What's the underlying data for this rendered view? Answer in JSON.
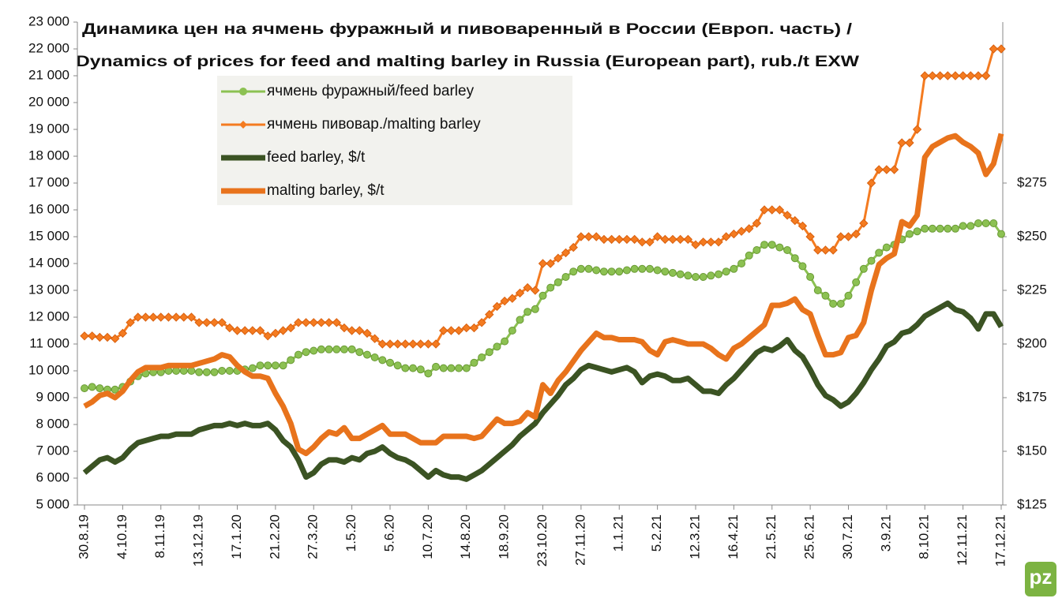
{
  "chart_data": {
    "type": "line",
    "title": "Динамика цен на ячмень фуражный и пивоваренный в России (Европ. часть) /",
    "subtitle": "Dynamics of prices for feed and malting barley in Russia (European part), rub./t EXW",
    "categories": [
      "30.8.19",
      null,
      null,
      null,
      null,
      "4.10.19",
      null,
      null,
      null,
      null,
      "8.11.19",
      null,
      null,
      null,
      null,
      "13.12.19",
      null,
      null,
      null,
      null,
      "17.1.20",
      null,
      null,
      null,
      null,
      "21.2.20",
      null,
      null,
      null,
      null,
      "27.3.20",
      null,
      null,
      null,
      null,
      "1.5.20",
      null,
      null,
      null,
      null,
      "5.6.20",
      null,
      null,
      null,
      null,
      "10.7.20",
      null,
      null,
      null,
      null,
      "14.8.20",
      null,
      null,
      null,
      null,
      "18.9.20",
      null,
      null,
      null,
      null,
      "23.10.20",
      null,
      null,
      null,
      null,
      "27.11.20",
      null,
      null,
      null,
      null,
      "1.1.21",
      null,
      null,
      null,
      null,
      "5.2.21",
      null,
      null,
      null,
      null,
      "12.3.21",
      null,
      null,
      null,
      null,
      "16.4.21",
      null,
      null,
      null,
      null,
      "21.5.21",
      null,
      null,
      null,
      null,
      "25.6.21",
      null,
      null,
      null,
      null,
      "30.7.21",
      null,
      null,
      null,
      null,
      "3.9.21",
      null,
      null,
      null,
      null,
      "8.10.21",
      null,
      null,
      null,
      null,
      "12.11.21",
      null,
      null,
      null,
      null,
      "17.12.21"
    ],
    "series": [
      {
        "name": "ячмень фуражный/feed barley",
        "color": "#8cc152",
        "marker": "circle",
        "values": [
          9350,
          9400,
          9350,
          9300,
          9300,
          9400,
          9600,
          9800,
          9900,
          9950,
          9950,
          10000,
          10000,
          10000,
          10000,
          9950,
          9950,
          9950,
          10000,
          10000,
          10000,
          10050,
          10100,
          10200,
          10200,
          10200,
          10200,
          10400,
          10600,
          10700,
          10750,
          10800,
          10800,
          10800,
          10800,
          10800,
          10700,
          10600,
          10500,
          10400,
          10300,
          10200,
          10100,
          10100,
          10050,
          9900,
          10150,
          10100,
          10100,
          10100,
          10100,
          10300,
          10500,
          10700,
          10900,
          11100,
          11500,
          11900,
          12200,
          12300,
          12800,
          13100,
          13300,
          13500,
          13700,
          13800,
          13800,
          13750,
          13700,
          13700,
          13700,
          13750,
          13800,
          13800,
          13800,
          13750,
          13700,
          13650,
          13600,
          13550,
          13500,
          13500,
          13550,
          13600,
          13700,
          13800,
          14000,
          14300,
          14500,
          14700,
          14700,
          14600,
          14500,
          14200,
          13900,
          13500,
          13000,
          12800,
          12500,
          12500,
          12800,
          13300,
          13800,
          14100,
          14400,
          14600,
          14700,
          14900,
          15100,
          15200,
          15300,
          15300,
          15300,
          15300,
          15300,
          15400,
          15400,
          15500,
          15500,
          15500,
          15100
        ]
      },
      {
        "name": "ячмень пивовар./malting barley",
        "color": "#f47b20",
        "marker": "diamond",
        "values": [
          11300,
          11300,
          11250,
          11250,
          11200,
          11400,
          11800,
          12000,
          12000,
          12000,
          12000,
          12000,
          12000,
          12000,
          12000,
          11800,
          11800,
          11800,
          11800,
          11600,
          11500,
          11500,
          11500,
          11500,
          11300,
          11400,
          11500,
          11600,
          11800,
          11800,
          11800,
          11800,
          11800,
          11800,
          11600,
          11500,
          11500,
          11400,
          11200,
          11000,
          11000,
          11000,
          11000,
          11000,
          11000,
          11000,
          11000,
          11500,
          11500,
          11500,
          11600,
          11600,
          11800,
          12100,
          12400,
          12600,
          12700,
          12900,
          13100,
          13000,
          14000,
          14000,
          14200,
          14400,
          14600,
          15000,
          15000,
          15000,
          14900,
          14900,
          14900,
          14900,
          14900,
          14800,
          14800,
          15000,
          14900,
          14900,
          14900,
          14900,
          14700,
          14800,
          14800,
          14800,
          15000,
          15100,
          15200,
          15300,
          15500,
          16000,
          16000,
          16000,
          15800,
          15600,
          15400,
          15000,
          14500,
          14500,
          14500,
          15000,
          15000,
          15100,
          15500,
          17000,
          17500,
          17500,
          17500,
          18500,
          18500,
          19000,
          21000,
          21000,
          21000,
          21000,
          21000,
          21000,
          21000,
          21000,
          21000,
          22000,
          22000
        ]
      },
      {
        "name": "feed barley, $/t",
        "color": "#3b5323",
        "axis": "y2",
        "values": [
          140,
          143,
          146,
          147,
          145,
          147,
          151,
          154,
          155,
          156,
          157,
          157,
          158,
          158,
          158,
          160,
          161,
          162,
          162,
          163,
          162,
          163,
          162,
          162,
          163,
          160,
          155,
          152,
          146,
          138,
          140,
          144,
          146,
          146,
          145,
          147,
          146,
          149,
          150,
          152,
          149,
          147,
          146,
          144,
          141,
          138,
          141,
          139,
          138,
          138,
          137,
          139,
          141,
          144,
          147,
          150,
          153,
          157,
          160,
          163,
          168,
          172,
          176,
          181,
          184,
          188,
          190,
          189,
          188,
          187,
          188,
          189,
          187,
          182,
          185,
          186,
          185,
          183,
          183,
          184,
          181,
          178,
          178,
          177,
          181,
          184,
          188,
          192,
          196,
          198,
          197,
          199,
          202,
          197,
          194,
          188,
          181,
          176,
          174,
          171,
          173,
          177,
          182,
          188,
          193,
          199,
          201,
          205,
          206,
          209,
          213,
          215,
          217,
          219,
          216,
          215,
          212,
          207,
          214,
          214,
          208
        ]
      },
      {
        "name": "malting barley, $/t",
        "color": "#e8731c",
        "axis": "y2",
        "values": [
          171,
          173,
          176,
          177,
          175,
          178,
          183,
          187,
          189,
          189,
          189,
          190,
          190,
          190,
          190,
          191,
          192,
          193,
          195,
          194,
          190,
          187,
          185,
          185,
          184,
          177,
          171,
          163,
          151,
          149,
          152,
          156,
          159,
          158,
          161,
          156,
          156,
          158,
          160,
          162,
          158,
          158,
          158,
          156,
          154,
          154,
          154,
          157,
          157,
          157,
          157,
          156,
          157,
          161,
          165,
          163,
          163,
          164,
          168,
          166,
          181,
          177,
          183,
          187,
          192,
          197,
          201,
          205,
          203,
          203,
          202,
          202,
          202,
          201,
          197,
          195,
          201,
          202,
          201,
          200,
          200,
          200,
          198,
          195,
          193,
          198,
          200,
          203,
          206,
          209,
          218,
          218,
          219,
          221,
          216,
          214,
          204,
          195,
          195,
          196,
          203,
          204,
          210,
          225,
          237,
          240,
          242,
          257,
          255,
          260,
          287,
          292,
          294,
          296,
          297,
          294,
          292,
          289,
          279,
          284,
          298
        ]
      }
    ],
    "ylim": [
      5000,
      23000
    ],
    "yticks": [
      {
        "value": 5000,
        "label": "5 000"
      },
      {
        "value": 6000,
        "label": "6 000"
      },
      {
        "value": 7000,
        "label": "7 000"
      },
      {
        "value": 8000,
        "label": "8 000"
      },
      {
        "value": 9000,
        "label": "9 000"
      },
      {
        "value": 10000,
        "label": "10 000"
      },
      {
        "value": 11000,
        "label": "11 000"
      },
      {
        "value": 12000,
        "label": "12 000"
      },
      {
        "value": 13000,
        "label": "13 000"
      },
      {
        "value": 14000,
        "label": "14 000"
      },
      {
        "value": 15000,
        "label": "15 000"
      },
      {
        "value": 16000,
        "label": "16 000"
      },
      {
        "value": 17000,
        "label": "17 000"
      },
      {
        "value": 18000,
        "label": "18 000"
      },
      {
        "value": 19000,
        "label": "19 000"
      },
      {
        "value": 20000,
        "label": "20 000"
      },
      {
        "value": 21000,
        "label": "21 000"
      },
      {
        "value": 22000,
        "label": "22 000"
      },
      {
        "value": 23000,
        "label": "23 000"
      }
    ],
    "y2lim": [
      125,
      350
    ],
    "y2ticks": [
      {
        "value": 125,
        "label": "$125"
      },
      {
        "value": 150,
        "label": "$150"
      },
      {
        "value": 175,
        "label": "$175"
      },
      {
        "value": 200,
        "label": "$200"
      },
      {
        "value": 225,
        "label": "$225"
      },
      {
        "value": 250,
        "label": "$250"
      },
      {
        "value": 275,
        "label": "$275"
      }
    ],
    "grid": false,
    "legend": "top-left"
  }
}
